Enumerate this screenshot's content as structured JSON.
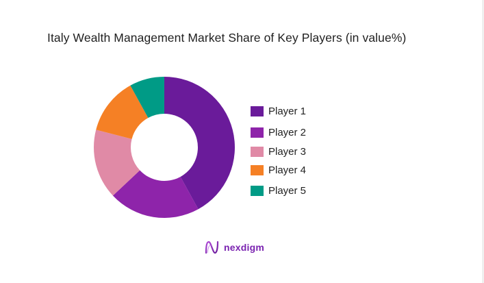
{
  "title": "Italy Wealth Management Market Share of Key Players (in value%)",
  "brand": {
    "name": "nexdigm",
    "icon": "nexdigm-logo-icon"
  },
  "legend": [
    {
      "label": "Player 1",
      "color": "#6a1b9a"
    },
    {
      "label": "Player 2",
      "color": "#8e24aa"
    },
    {
      "label": "Player 3",
      "color": "#e08aa6"
    },
    {
      "label": "Player 4",
      "color": "#f58025"
    },
    {
      "label": "Player 5",
      "color": "#009b86"
    }
  ],
  "chart_data": {
    "type": "pie",
    "subtype": "donut",
    "title": "Italy Wealth Management Market Share of Key Players (in value%)",
    "categories": [
      "Player 1",
      "Player 2",
      "Player 3",
      "Player 4",
      "Player 5"
    ],
    "values": [
      42,
      21,
      16,
      13,
      8
    ],
    "colors": [
      "#6a1b9a",
      "#8e24aa",
      "#e08aa6",
      "#f58025",
      "#009b86"
    ],
    "unit": "%",
    "start_angle": "12 o'clock, clockwise",
    "legend_position": "right",
    "data_labels": false
  }
}
